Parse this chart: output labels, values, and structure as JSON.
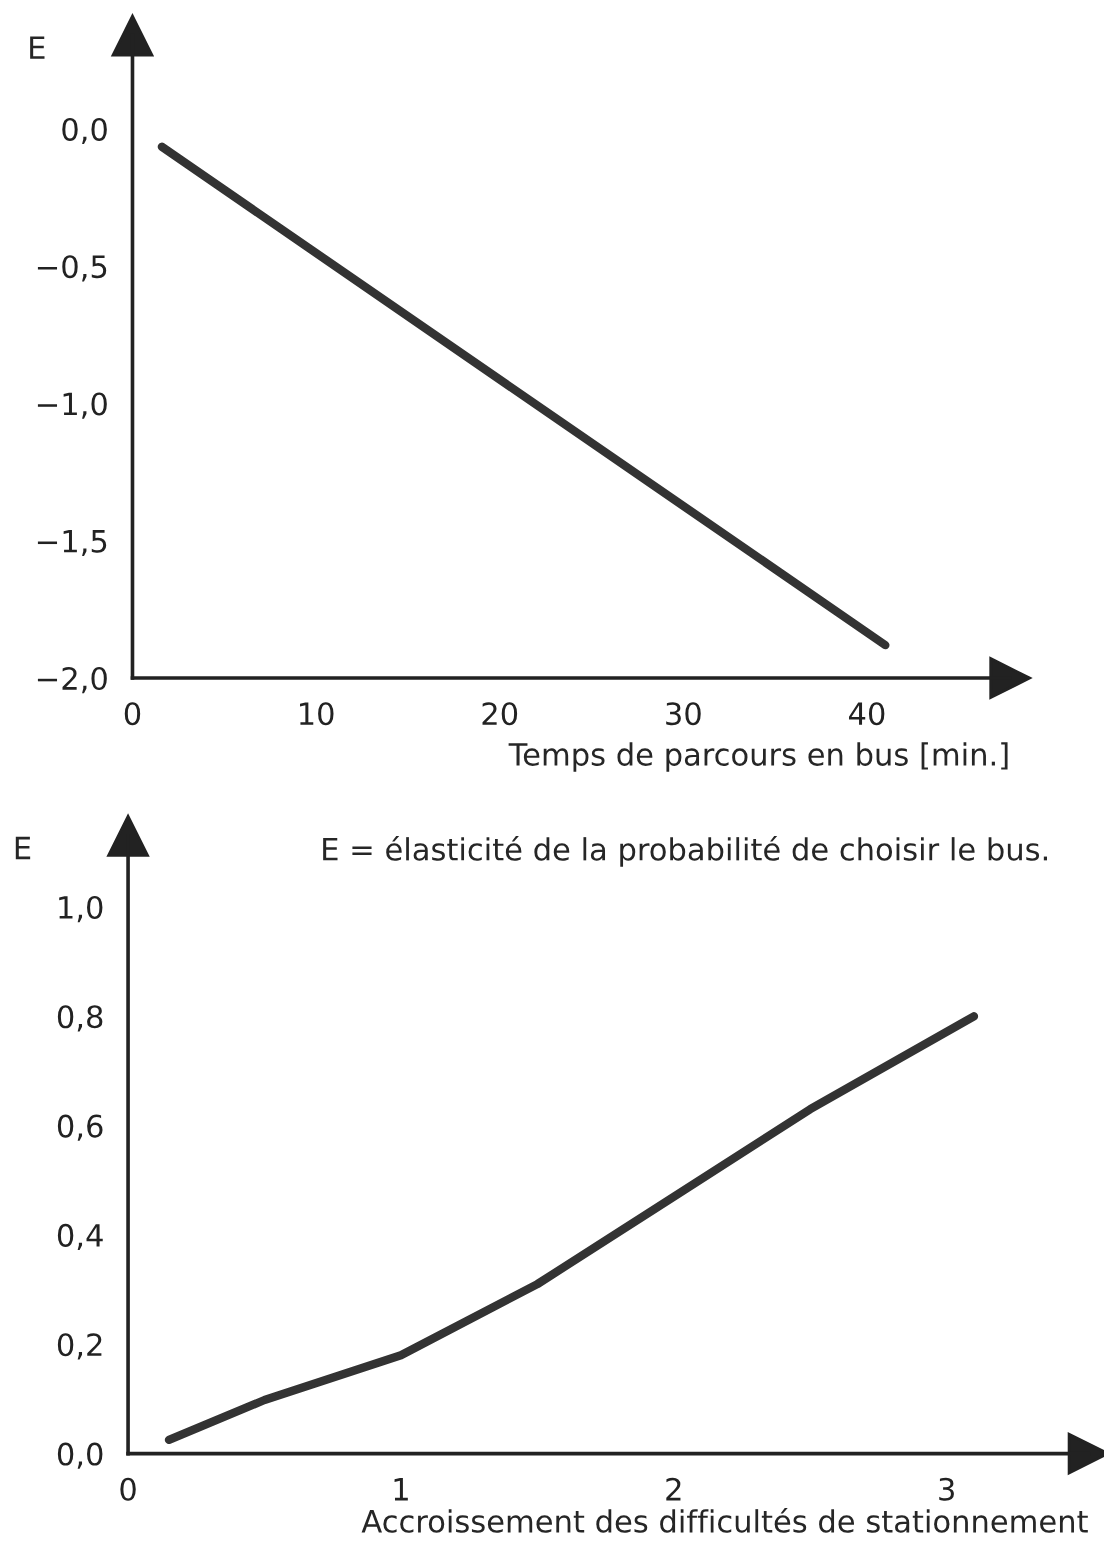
{
  "chart_data": [
    {
      "type": "line",
      "ylabel": "E",
      "xlabel": "Temps de parcours en bus [min.]",
      "x": [
        1.6,
        41
      ],
      "series": [
        {
          "color": "#333333",
          "values": [
            -0.065,
            -1.88
          ]
        }
      ],
      "xlim": [
        0,
        47.8
      ],
      "xticks": [
        0,
        10,
        20,
        30,
        40
      ],
      "ylim": [
        -2.0,
        0.34
      ],
      "yticks": [
        {
          "value": 0,
          "label": "0,0"
        },
        {
          "value": -0.5,
          "label": "−0,5"
        },
        {
          "value": -1.0,
          "label": "−1,0"
        },
        {
          "value": -1.5,
          "label": "−1,5"
        },
        {
          "value": -2.0,
          "label": "−2,0"
        }
      ],
      "grid": false,
      "legend": false
    },
    {
      "type": "line",
      "ylabel": "E",
      "xlabel": "Accroissement des difficultés de stationnement",
      "annotations": [
        "E = élasticité de la probabilité de choisir le bus."
      ],
      "x": [
        0.15,
        0.5,
        1.0,
        1.5,
        2.0,
        2.5,
        3.1
      ],
      "series": [
        {
          "color": "#333333",
          "values": [
            0.025,
            0.098,
            0.18,
            0.31,
            0.47,
            0.63,
            0.8
          ]
        }
      ],
      "xlim": [
        0,
        3.52
      ],
      "xticks": [
        0,
        1,
        2,
        3
      ],
      "ylim": [
        0,
        1.13
      ],
      "yticks": [
        {
          "value": 0,
          "label": "0,0"
        },
        {
          "value": 0.2,
          "label": "0,2"
        },
        {
          "value": 0.4,
          "label": "0,4"
        },
        {
          "value": 0.6,
          "label": "0,6"
        },
        {
          "value": 0.8,
          "label": "0,8"
        },
        {
          "value": 1.0,
          "label": "1,0"
        }
      ],
      "grid": false,
      "legend": false
    }
  ]
}
